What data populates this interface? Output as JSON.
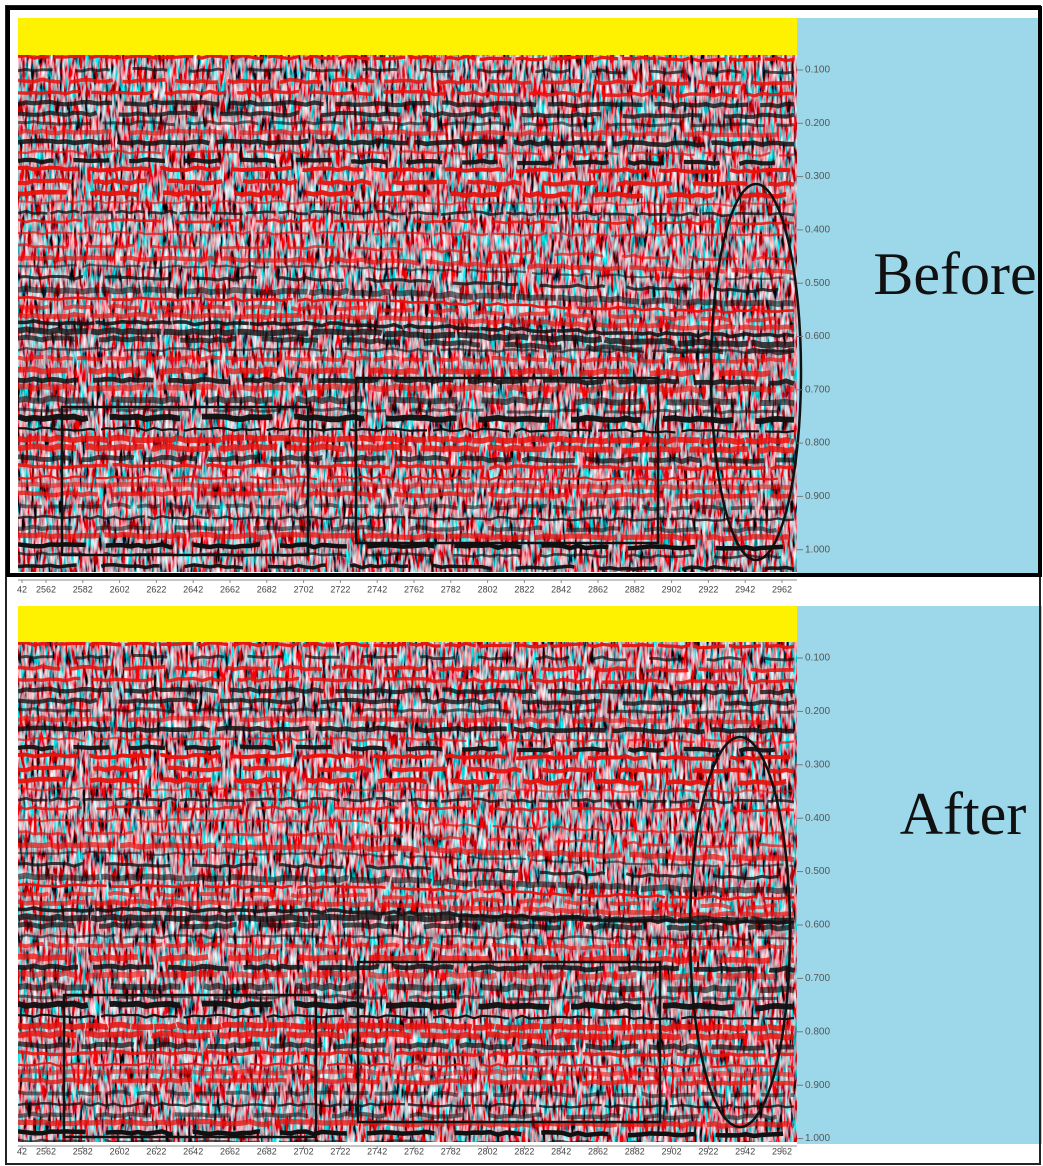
{
  "panels": [
    {
      "label": "Before",
      "time_labels": [
        "0.100",
        "0.200",
        "0.300",
        "0.400",
        "0.500",
        "0.600",
        "0.700",
        "0.800",
        "0.900",
        "1.000"
      ],
      "trace_labels": [
        "42",
        "2562",
        "2582",
        "2602",
        "2622",
        "2642",
        "2662",
        "2682",
        "2702",
        "2722",
        "2742",
        "2762",
        "2782",
        "2802",
        "2822",
        "2842",
        "2862",
        "2882",
        "2902",
        "2922",
        "2942",
        "2962"
      ]
    },
    {
      "label": "After",
      "time_labels": [
        "0.100",
        "0.200",
        "0.300",
        "0.400",
        "0.500",
        "0.600",
        "0.700",
        "0.800",
        "0.900",
        "1.000"
      ],
      "trace_labels": [
        "42",
        "2562",
        "2582",
        "2602",
        "2622",
        "2642",
        "2662",
        "2682",
        "2702",
        "2722",
        "2742",
        "2762",
        "2782",
        "2802",
        "2822",
        "2842",
        "2862",
        "2882",
        "2902",
        "2922",
        "2942",
        "2962"
      ]
    }
  ]
}
